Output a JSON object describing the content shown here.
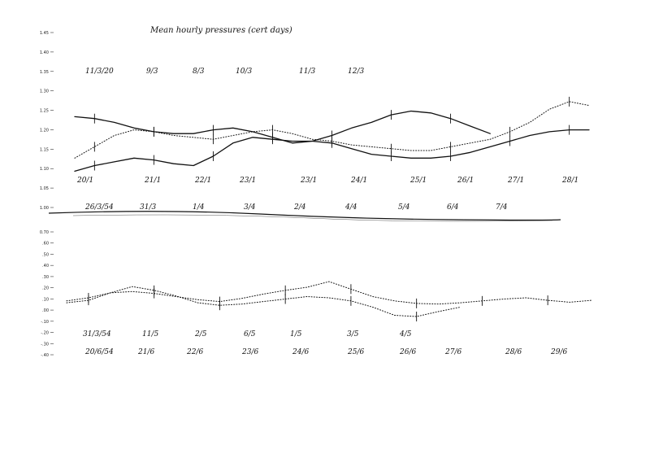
{
  "title": "Mean hourly pressures (cert days)",
  "chart_data": [
    {
      "type": "line",
      "title": "Mean hourly pressures (cert days)",
      "xlabel": "",
      "ylabel": "",
      "ylim": [
        1.0,
        1.45
      ],
      "grid": false,
      "y_ticks": [
        "1.45",
        "1.40",
        "1.35",
        "1.30",
        "1.25",
        "1.20",
        "1.15",
        "1.10",
        "1.05",
        "1.00"
      ],
      "date_rows": [
        [
          "11/3/20",
          "9/3",
          "8/3",
          "10/3",
          "11/3",
          "12/3"
        ],
        [
          "20/1",
          "21/1",
          "22/1",
          "23/1",
          "23/1",
          "24/1",
          "25/1",
          "26/1",
          "27/1",
          "28/1"
        ],
        [
          "26/3/54",
          "31/3",
          "1/4",
          "3/4",
          "2/4",
          "4/4",
          "5/4",
          "6/4",
          "7/4"
        ]
      ],
      "x": [
        0,
        1,
        2,
        3,
        4,
        5,
        6,
        7,
        8,
        9,
        10,
        11,
        12,
        13,
        14,
        15,
        16,
        17,
        18,
        19,
        20,
        21,
        22,
        23,
        24,
        25,
        26
      ],
      "series": [
        {
          "style": "solid",
          "values": [
            1.34,
            1.33,
            1.31,
            1.28,
            1.26,
            1.25,
            1.25,
            1.27,
            1.28,
            1.26,
            1.23,
            1.2,
            1.21,
            1.24,
            1.28,
            1.31,
            1.35,
            1.37,
            1.36,
            1.33,
            1.29,
            1.25,
            null,
            null,
            null,
            null,
            null
          ]
        },
        {
          "style": "dotted",
          "values": [
            1.12,
            1.18,
            1.24,
            1.27,
            1.26,
            1.24,
            1.23,
            1.22,
            1.24,
            1.26,
            1.27,
            1.25,
            1.22,
            1.21,
            1.19,
            1.18,
            1.17,
            1.16,
            1.16,
            1.18,
            1.2,
            1.22,
            1.26,
            1.31,
            1.38,
            1.42,
            1.4
          ]
        },
        {
          "style": "solid",
          "values": [
            1.05,
            1.08,
            1.1,
            1.12,
            1.11,
            1.09,
            1.08,
            1.13,
            1.2,
            1.23,
            1.22,
            1.21,
            1.21,
            1.2,
            1.17,
            1.14,
            1.13,
            1.12,
            1.12,
            1.13,
            1.15,
            1.18,
            1.21,
            1.24,
            1.26,
            1.27,
            1.27
          ]
        }
      ]
    },
    {
      "type": "line",
      "title": "",
      "xlabel": "",
      "ylabel": "",
      "ylim": [
        -0.5,
        0.7
      ],
      "grid": false,
      "y_ticks": [
        "0.70",
        ".60",
        ".50",
        ".40",
        ".30",
        ".20",
        ".10",
        ".00",
        "-.10",
        "-.20",
        "-.30",
        "-.40"
      ],
      "date_rows": [
        [
          "31/3/54",
          "11/5",
          "2/5",
          "6/5",
          "1/5",
          "3/5",
          "4/5"
        ],
        [
          "20/6/54",
          "21/6",
          "22/6",
          "23/6",
          "24/6",
          "25/6",
          "26/6",
          "27/6",
          "28/6",
          "29/6"
        ]
      ],
      "x": [
        0,
        1,
        2,
        3,
        4,
        5,
        6,
        7,
        8,
        9,
        10,
        11,
        12,
        13,
        14,
        15,
        16,
        17,
        18,
        19,
        20,
        21,
        22,
        23,
        24
      ],
      "series": [
        {
          "style": "dotted",
          "values": [
            0.05,
            0.1,
            0.18,
            0.2,
            0.17,
            0.12,
            0.07,
            0.04,
            0.09,
            0.16,
            0.22,
            0.27,
            0.36,
            0.24,
            0.12,
            0.05,
            0.01,
            0.0,
            0.02,
            0.05,
            0.08,
            0.1,
            0.06,
            0.03,
            0.06
          ]
        },
        {
          "style": "dotted",
          "values": [
            0.02,
            0.06,
            0.18,
            0.28,
            0.22,
            0.13,
            0.02,
            -0.02,
            0.0,
            0.04,
            0.08,
            0.12,
            0.1,
            0.05,
            -0.05,
            -0.18,
            -0.2,
            -0.12,
            -0.05,
            null,
            null,
            null,
            null,
            null,
            null
          ]
        }
      ]
    }
  ]
}
